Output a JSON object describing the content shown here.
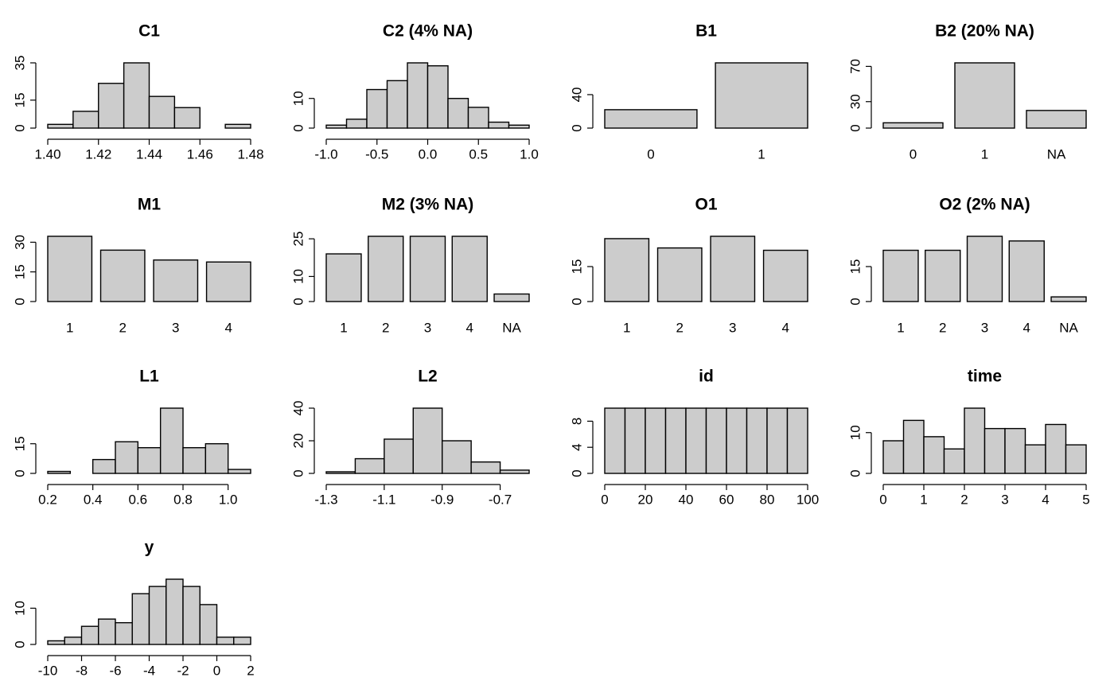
{
  "chart_data": [
    {
      "type": "histogram",
      "title": "C1",
      "bins": [
        1.4,
        1.41,
        1.42,
        1.43,
        1.44,
        1.45,
        1.46,
        1.47,
        1.48
      ],
      "values": [
        2,
        9,
        24,
        35,
        17,
        11,
        0,
        2
      ],
      "xlim": [
        1.4,
        1.48
      ],
      "ylim": [
        0,
        35
      ],
      "xticks": [
        {
          "value": 1.4,
          "label": "1.40"
        },
        {
          "value": 1.42,
          "label": "1.42"
        },
        {
          "value": 1.44,
          "label": "1.44"
        },
        {
          "value": 1.46,
          "label": "1.46"
        },
        {
          "value": 1.48,
          "label": "1.48"
        }
      ],
      "yticks": [
        0,
        15,
        35
      ],
      "color": "#cccccc"
    },
    {
      "type": "histogram",
      "title": "C2 (4% NA)",
      "bins": [
        -1.0,
        -0.8,
        -0.6,
        -0.4,
        -0.2,
        0.0,
        0.2,
        0.4,
        0.6,
        0.8,
        1.0
      ],
      "values": [
        1,
        3,
        13,
        16,
        22,
        21,
        10,
        7,
        2,
        1
      ],
      "xlim": [
        -1.0,
        1.0
      ],
      "ylim": [
        0,
        22
      ],
      "xticks": [
        {
          "value": -1.0,
          "label": "-1.0"
        },
        -0.5,
        {
          "value": 0,
          "label": "0.0"
        },
        0.5,
        {
          "value": 1.0,
          "label": "1.0"
        }
      ],
      "yticks": [
        0,
        10
      ],
      "color": "#cccccc"
    },
    {
      "type": "bar",
      "title": "B1",
      "categories": [
        "0",
        "1"
      ],
      "values": [
        22,
        78
      ],
      "ylim": [
        0,
        78
      ],
      "yticks": [
        0,
        40
      ],
      "color": "#cccccc"
    },
    {
      "type": "bar",
      "title": "B2 (20% NA)",
      "categories": [
        "0",
        "1",
        "NA"
      ],
      "values": [
        6,
        74,
        20
      ],
      "ylim": [
        0,
        74
      ],
      "yticks": [
        0,
        30,
        70
      ],
      "color": "#cccccc"
    },
    {
      "type": "bar",
      "title": "M1",
      "categories": [
        "1",
        "2",
        "3",
        "4"
      ],
      "values": [
        33,
        26,
        21,
        20
      ],
      "ylim": [
        0,
        33
      ],
      "yticks": [
        0,
        15,
        30
      ],
      "color": "#cccccc"
    },
    {
      "type": "bar",
      "title": "M2 (3% NA)",
      "categories": [
        "1",
        "2",
        "3",
        "4",
        "NA"
      ],
      "values": [
        19,
        26,
        26,
        26,
        3
      ],
      "ylim": [
        0,
        26
      ],
      "yticks": [
        0,
        10,
        25
      ],
      "color": "#cccccc"
    },
    {
      "type": "bar",
      "title": "O1",
      "categories": [
        "1",
        "2",
        "3",
        "4"
      ],
      "values": [
        27,
        23,
        28,
        22
      ],
      "ylim": [
        0,
        28
      ],
      "yticks": [
        0,
        15
      ],
      "color": "#cccccc"
    },
    {
      "type": "bar",
      "title": "O2 (2% NA)",
      "categories": [
        "1",
        "2",
        "3",
        "4",
        "NA"
      ],
      "values": [
        22,
        22,
        28,
        26,
        2
      ],
      "ylim": [
        0,
        28
      ],
      "yticks": [
        0,
        15
      ],
      "color": "#cccccc"
    },
    {
      "type": "histogram",
      "title": "L1",
      "bins": [
        0.2,
        0.3,
        0.4,
        0.5,
        0.6,
        0.7,
        0.8,
        0.9,
        1.0,
        1.1
      ],
      "values": [
        1,
        0,
        7,
        16,
        13,
        33,
        13,
        15,
        2
      ],
      "xlim": [
        0.2,
        1.1
      ],
      "ylim": [
        0,
        33
      ],
      "xticks": [
        0.2,
        0.4,
        0.6,
        0.8,
        {
          "value": 1.0,
          "label": "1.0"
        }
      ],
      "yticks": [
        0,
        15
      ],
      "color": "#cccccc"
    },
    {
      "type": "histogram",
      "title": "L2",
      "bins": [
        -1.3,
        -1.2,
        -1.1,
        -1.0,
        -0.9,
        -0.8,
        -0.7,
        -0.6
      ],
      "values": [
        1,
        9,
        21,
        40,
        20,
        7,
        2
      ],
      "xlim": [
        -1.3,
        -0.6
      ],
      "ylim": [
        0,
        40
      ],
      "xticks": [
        -1.3,
        -1.1,
        -0.9,
        -0.7
      ],
      "yticks": [
        0,
        20,
        40
      ],
      "color": "#cccccc"
    },
    {
      "type": "histogram",
      "title": "id",
      "bins": [
        0,
        10,
        20,
        30,
        40,
        50,
        60,
        70,
        80,
        90,
        100
      ],
      "values": [
        10,
        10,
        10,
        10,
        10,
        10,
        10,
        10,
        10,
        10
      ],
      "xlim": [
        0,
        100
      ],
      "ylim": [
        0,
        10
      ],
      "xticks": [
        0,
        20,
        40,
        60,
        80,
        100
      ],
      "yticks": [
        0,
        4,
        8
      ],
      "color": "#cccccc"
    },
    {
      "type": "histogram",
      "title": "time",
      "bins": [
        0,
        0.5,
        1,
        1.5,
        2,
        2.5,
        3,
        3.5,
        4,
        4.5,
        5
      ],
      "values": [
        8,
        13,
        9,
        6,
        16,
        11,
        11,
        7,
        12,
        7
      ],
      "xlim": [
        0,
        5
      ],
      "ylim": [
        0,
        16
      ],
      "xticks": [
        0,
        1,
        2,
        3,
        4,
        5
      ],
      "yticks": [
        0,
        10
      ],
      "color": "#cccccc"
    },
    {
      "type": "histogram",
      "title": "y",
      "bins": [
        -10,
        -9,
        -8,
        -7,
        -6,
        -5,
        -4,
        -3,
        -2,
        -1,
        0,
        1,
        2
      ],
      "values": [
        1,
        2,
        5,
        7,
        6,
        14,
        16,
        18,
        16,
        11,
        2,
        2
      ],
      "xlim": [
        -10,
        2
      ],
      "ylim": [
        0,
        18
      ],
      "xticks": [
        -10,
        -8,
        -6,
        -4,
        -2,
        0,
        2
      ],
      "yticks": [
        0,
        10
      ],
      "color": "#cccccc"
    }
  ]
}
